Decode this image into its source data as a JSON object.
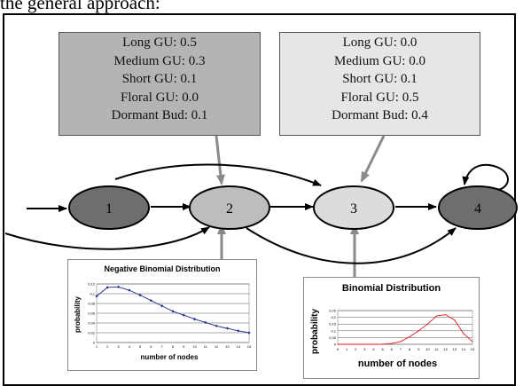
{
  "header_fragment": "the general approach:",
  "prob_boxes": [
    {
      "rows": [
        {
          "label": "Long GU",
          "value": "0.5"
        },
        {
          "label": "Medium GU",
          "value": "0.3"
        },
        {
          "label": "Short GU",
          "value": "0.1"
        },
        {
          "label": "Floral GU",
          "value": "0.0"
        },
        {
          "label": "Dormant Bud",
          "value": "0.1"
        }
      ]
    },
    {
      "rows": [
        {
          "label": "Long GU",
          "value": "0.0"
        },
        {
          "label": "Medium GU",
          "value": "0.0"
        },
        {
          "label": "Short GU",
          "value": "0.1"
        },
        {
          "label": "Floral GU",
          "value": "0.5"
        },
        {
          "label": "Dormant Bud",
          "value": "0.4"
        }
      ]
    }
  ],
  "nodes": [
    {
      "label": "1",
      "fill": "#6e6e6e"
    },
    {
      "label": "2",
      "fill": "#bdbdbd"
    },
    {
      "label": "3",
      "fill": "#dcdcdc"
    },
    {
      "label": "4",
      "fill": "#6e6e6e"
    }
  ],
  "chart_data": [
    {
      "type": "line",
      "title": "Negative Binomial Distribution",
      "xlabel": "number of nodes",
      "ylabel": "probability",
      "x": [
        1,
        2,
        3,
        4,
        5,
        6,
        7,
        8,
        9,
        10,
        11,
        12,
        13,
        14,
        15
      ],
      "values": [
        0.095,
        0.113,
        0.114,
        0.107,
        0.097,
        0.086,
        0.075,
        0.064,
        0.056,
        0.048,
        0.041,
        0.034,
        0.029,
        0.024,
        0.02
      ],
      "ylim": [
        0,
        0.12
      ],
      "yticks": [
        "0",
        "0,02",
        "0,04",
        "0,06",
        "0,08",
        "0,1",
        "0,12"
      ],
      "line_color": "#1f2a8a",
      "marker": "diamond"
    },
    {
      "type": "line",
      "title": "Binomial Distribution",
      "xlabel": "number of nodes",
      "ylabel": "probability",
      "x": [
        0,
        1,
        2,
        3,
        4,
        5,
        6,
        7,
        8,
        9,
        10,
        11,
        12,
        13,
        14,
        15
      ],
      "values": [
        0,
        0,
        0,
        0,
        0,
        0.001,
        0.006,
        0.02,
        0.055,
        0.1,
        0.15,
        0.21,
        0.22,
        0.18,
        0.08,
        0.02
      ],
      "ylim": [
        0,
        0.25
      ],
      "yticks": [
        "0",
        "0,05",
        "0,1",
        "0,15",
        "0,2",
        "0,25"
      ],
      "line_color": "#e01818",
      "marker": "none"
    }
  ],
  "colors": {
    "box_dark": "#b4b4b4",
    "box_light": "#e6e6e6",
    "arrow_gray": "#8a8a8a"
  }
}
